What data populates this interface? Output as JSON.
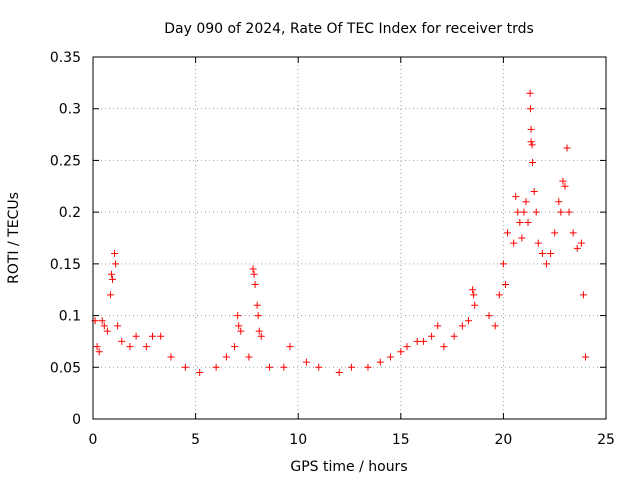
{
  "chart_data": {
    "type": "scatter",
    "title": "Day 090 of 2024, Rate Of TEC Index for receiver trds",
    "xlabel": "GPS time / hours",
    "ylabel": "ROTI / TECUs",
    "xlim": [
      0,
      25
    ],
    "ylim": [
      0,
      0.35
    ],
    "x_ticks": [
      "0",
      "5",
      "10",
      "15",
      "20",
      "25"
    ],
    "y_ticks": [
      "0",
      "0.05",
      "0.1",
      "0.15",
      "0.2",
      "0.25",
      "0.3",
      "0.35"
    ],
    "grid": true,
    "marker": "+",
    "color": "#ff0000",
    "series": [
      {
        "points": [
          [
            0.1,
            0.095
          ],
          [
            0.2,
            0.07
          ],
          [
            0.3,
            0.065
          ],
          [
            0.45,
            0.095
          ],
          [
            0.55,
            0.09
          ],
          [
            0.7,
            0.085
          ],
          [
            0.85,
            0.12
          ],
          [
            0.9,
            0.14
          ],
          [
            0.95,
            0.135
          ],
          [
            1.05,
            0.16
          ],
          [
            1.1,
            0.15
          ],
          [
            1.2,
            0.09
          ],
          [
            1.4,
            0.075
          ],
          [
            1.8,
            0.07
          ],
          [
            2.1,
            0.08
          ],
          [
            2.6,
            0.07
          ],
          [
            2.9,
            0.08
          ],
          [
            3.3,
            0.08
          ],
          [
            3.8,
            0.06
          ],
          [
            4.5,
            0.05
          ],
          [
            5.2,
            0.045
          ],
          [
            6.0,
            0.05
          ],
          [
            6.5,
            0.06
          ],
          [
            6.9,
            0.07
          ],
          [
            7.05,
            0.1
          ],
          [
            7.1,
            0.09
          ],
          [
            7.2,
            0.085
          ],
          [
            7.6,
            0.06
          ],
          [
            7.8,
            0.145
          ],
          [
            7.85,
            0.14
          ],
          [
            7.9,
            0.13
          ],
          [
            8.0,
            0.11
          ],
          [
            8.05,
            0.1
          ],
          [
            8.1,
            0.085
          ],
          [
            8.2,
            0.08
          ],
          [
            8.6,
            0.05
          ],
          [
            9.3,
            0.05
          ],
          [
            9.6,
            0.07
          ],
          [
            10.4,
            0.055
          ],
          [
            11.0,
            0.05
          ],
          [
            12.0,
            0.045
          ],
          [
            12.6,
            0.05
          ],
          [
            13.4,
            0.05
          ],
          [
            14.0,
            0.055
          ],
          [
            14.5,
            0.06
          ],
          [
            15.0,
            0.065
          ],
          [
            15.3,
            0.07
          ],
          [
            15.8,
            0.075
          ],
          [
            16.1,
            0.075
          ],
          [
            16.5,
            0.08
          ],
          [
            16.8,
            0.09
          ],
          [
            17.1,
            0.07
          ],
          [
            17.6,
            0.08
          ],
          [
            18.0,
            0.09
          ],
          [
            18.3,
            0.095
          ],
          [
            18.5,
            0.125
          ],
          [
            18.55,
            0.12
          ],
          [
            18.6,
            0.11
          ],
          [
            19.3,
            0.1
          ],
          [
            19.6,
            0.09
          ],
          [
            19.8,
            0.12
          ],
          [
            20.0,
            0.15
          ],
          [
            20.1,
            0.13
          ],
          [
            20.2,
            0.18
          ],
          [
            20.5,
            0.17
          ],
          [
            20.6,
            0.215
          ],
          [
            20.7,
            0.2
          ],
          [
            20.8,
            0.19
          ],
          [
            20.9,
            0.175
          ],
          [
            21.0,
            0.2
          ],
          [
            21.1,
            0.21
          ],
          [
            21.2,
            0.19
          ],
          [
            21.3,
            0.315
          ],
          [
            21.32,
            0.3
          ],
          [
            21.35,
            0.28
          ],
          [
            21.35,
            0.268
          ],
          [
            21.4,
            0.265
          ],
          [
            21.42,
            0.248
          ],
          [
            21.5,
            0.22
          ],
          [
            21.6,
            0.2
          ],
          [
            21.7,
            0.17
          ],
          [
            21.9,
            0.16
          ],
          [
            22.1,
            0.15
          ],
          [
            22.3,
            0.16
          ],
          [
            22.5,
            0.18
          ],
          [
            22.7,
            0.21
          ],
          [
            22.8,
            0.2
          ],
          [
            22.9,
            0.23
          ],
          [
            23.0,
            0.225
          ],
          [
            23.1,
            0.262
          ],
          [
            23.2,
            0.2
          ],
          [
            23.4,
            0.18
          ],
          [
            23.6,
            0.165
          ],
          [
            23.8,
            0.17
          ],
          [
            23.9,
            0.12
          ],
          [
            24.0,
            0.06
          ]
        ]
      }
    ]
  }
}
